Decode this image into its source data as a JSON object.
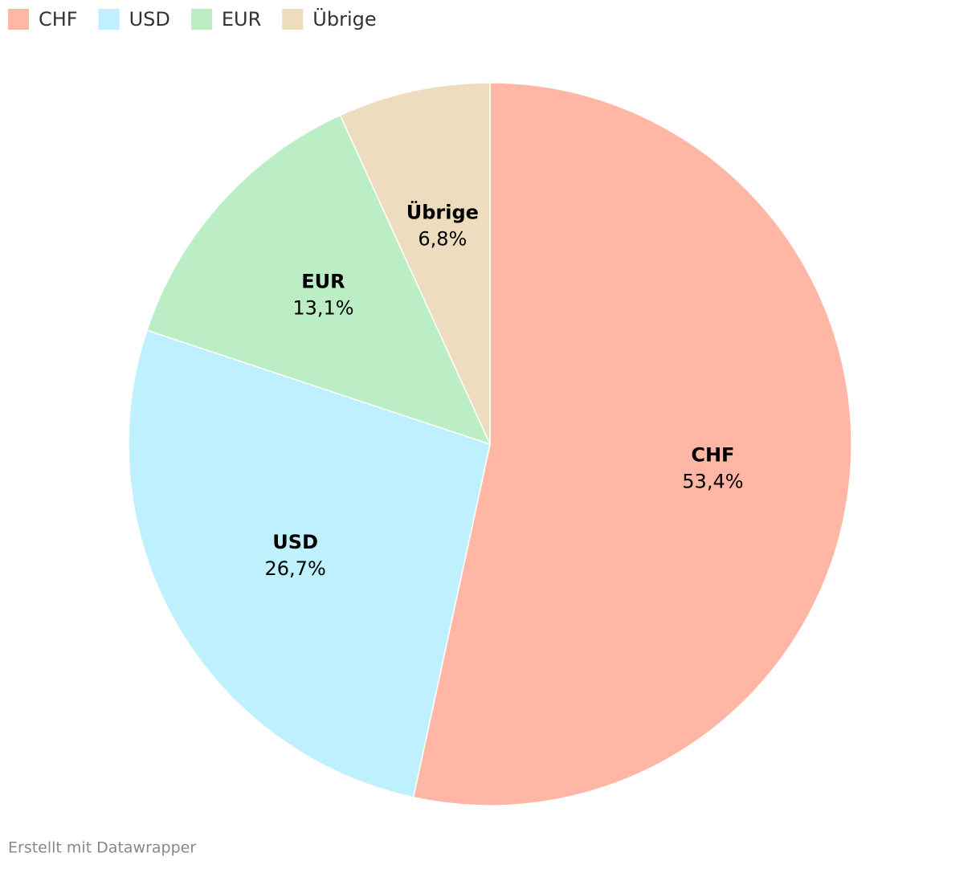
{
  "chart_data": {
    "type": "pie",
    "categories": [
      "CHF",
      "USD",
      "EUR",
      "Übrige"
    ],
    "values": [
      53.4,
      26.7,
      13.1,
      6.8
    ],
    "value_labels": [
      "53,4%",
      "26,7%",
      "13,1%",
      "6,8%"
    ],
    "colors": [
      "#ffb6a4",
      "#bff0fd",
      "#bbeec5",
      "#eddcbd"
    ],
    "legend": "top-left",
    "credit": "Erstellt mit Datawrapper"
  }
}
